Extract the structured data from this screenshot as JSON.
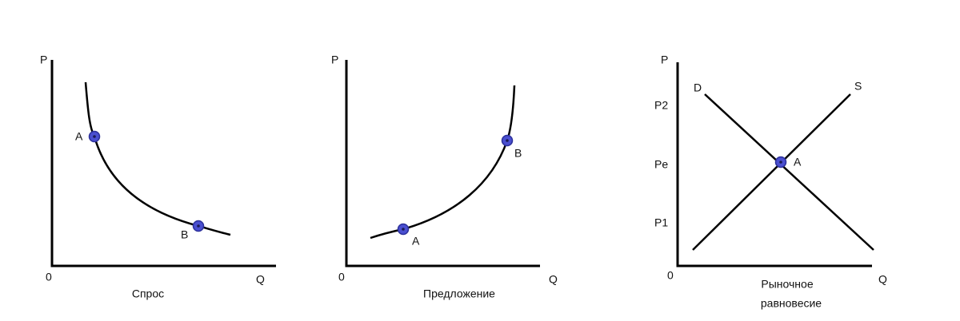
{
  "panels": [
    {
      "title": "Спрос",
      "y_label": "P",
      "x_label": "Q",
      "origin": "0",
      "points": [
        "A",
        "B"
      ]
    },
    {
      "title": "Предложение",
      "y_label": "P",
      "x_label": "Q",
      "origin": "0",
      "points": [
        "A",
        "B"
      ]
    },
    {
      "title_lines": [
        "Рыночное",
        "равновесие"
      ],
      "y_label": "P",
      "x_label": "Q",
      "origin": "0",
      "y_levels": [
        "P2",
        "Pe",
        "P1"
      ],
      "demand": "D",
      "supply": "S",
      "points": [
        "A"
      ]
    }
  ]
}
